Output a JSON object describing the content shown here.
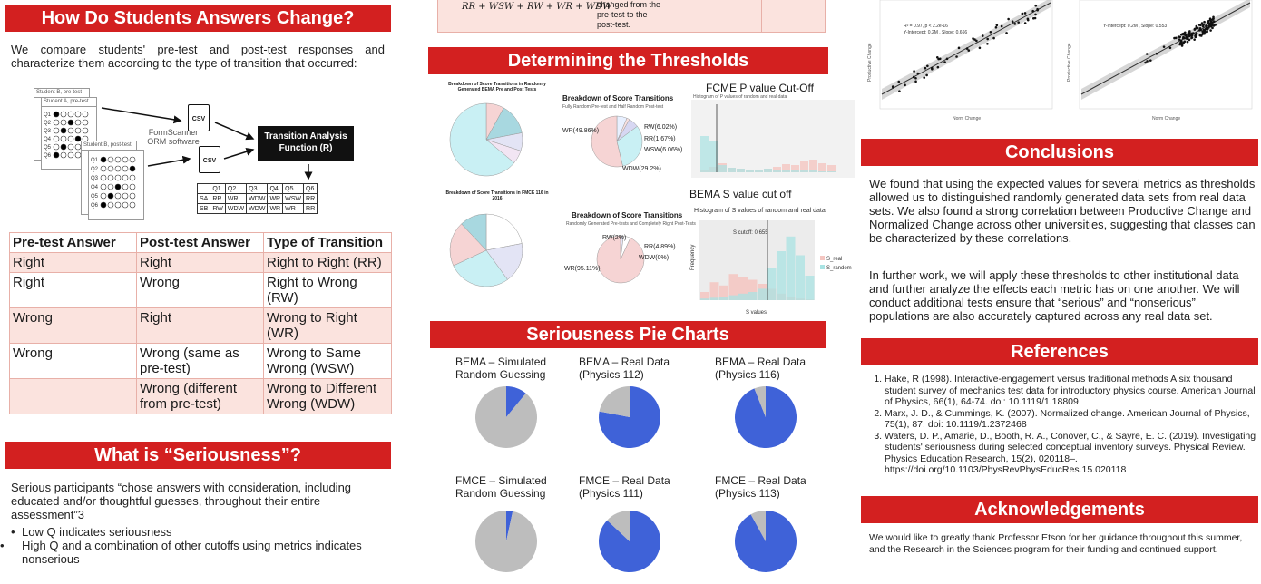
{
  "poster": {
    "students": {
      "title": "How Do Students Answers Change?",
      "intro": "We compare students' pre-test and post-test responses and characterize them according to the type of transition that occurred:",
      "figure": {
        "sheet_a": "Student A, pre-test",
        "sheet_b_pre": "Student B, pre-test",
        "sheet_b_post": "Student B, post-test",
        "software": "FormScanner ORM software",
        "csv": "CSV",
        "function_label": "Transition Analysis Function (R)",
        "questions": [
          "Q1",
          "Q2",
          "Q3",
          "Q4",
          "Q5",
          "Q6"
        ],
        "rows": [
          [
            "SA",
            "RR",
            "WR",
            "WDW",
            "WR",
            "WSW",
            "RR"
          ],
          [
            "SB",
            "RW",
            "WDW",
            "WDW",
            "WR",
            "WR",
            "RR"
          ]
        ]
      },
      "table": {
        "headers": [
          "Pre-test Answer",
          "Post-test Answer",
          "Type of Transition"
        ],
        "rows": [
          [
            "Right",
            "Right",
            "Right to Right (RR)"
          ],
          [
            "Right",
            "Wrong",
            "Right to Wrong (RW)"
          ],
          [
            "Wrong",
            "Right",
            "Wrong to Right (WR)"
          ],
          [
            "Wrong",
            "Wrong (same as pre-test)",
            "Wrong to Same Wrong (WSW)"
          ],
          [
            "",
            "Wrong (different from pre-test)",
            "Wrong to Different Wrong (WDW)"
          ]
        ]
      }
    },
    "seriousness": {
      "title": "What is “Seriousness”?",
      "text": "Serious participants “chose answers with consideration, including educated and/or thoughtful guesses, throughout their entire assessment”3",
      "bullets": [
        "Low Q indicates seriousness",
        "High Q and a combination of other cutoffs using metrics indicates nonserious"
      ]
    },
    "top_strip": {
      "formula": "RR + WSW + RW + WR + WDW",
      "note": "changed from the pre-test to the post-test."
    },
    "thresholds": {
      "title": "Determining the Thresholds",
      "pie1_title": "Breakdown of Score Transitions in Randomly Generated BEMA Pre and Post Tests",
      "pie2_title": "Breakdown of Score Transitions",
      "pie2_sub": "Fully Random Pre-test and Half Random Post-test",
      "pie2_labels": [
        "WR(49.86%)",
        "RW(6.02%)",
        "RR(1.67%)",
        "WSW(6.06%)",
        "WDW(29.2%)"
      ],
      "pie3_title": "Breakdown of Score Transitions in FMCE 116 in 2016",
      "pie4_title": "Breakdown of Score Transitions",
      "pie4_sub": "Randomly Generated Pre-tests and Completely Right Post-Tests",
      "pie4_labels": [
        "RW(2%)",
        "RR(4.89%)",
        "WDW(0%)",
        "WR(95.11%)"
      ],
      "fcme_title": "FCME P value Cut-Off",
      "fcme_sub": "Histogram of P values of random and real data",
      "bema_title": "BEMA S value cut off",
      "bema_sub": "Histogram of S values of random and real data",
      "bema_xlabel": "S values",
      "bema_ylabel": "Frequency",
      "bema_cut": "S cutoff: 0.655",
      "legend": [
        "S_real",
        "S_random"
      ]
    },
    "pies": {
      "title": "Seriousness Pie Charts",
      "charts": [
        {
          "label": "BEMA – Simulated Random Guessing",
          "serious_pct": 11
        },
        {
          "label": "BEMA – Real Data (Physics 112)",
          "serious_pct": 78
        },
        {
          "label": "BEMA – Real Data (Physics 116)",
          "serious_pct": 94
        },
        {
          "label": "FMCE – Simulated Random Guessing",
          "serious_pct": 3.4
        },
        {
          "label": "FMCE – Real Data (Physics 111)",
          "serious_pct": 87
        },
        {
          "label": "FMCE – Real Data (Physics 113)",
          "serious_pct": 92
        }
      ],
      "colors": {
        "serious": "#3f62d8",
        "nonserious": "#bdbdbd"
      }
    },
    "scatter": {
      "left_xlabel": "Norm Change",
      "right_xlabel": "Norm Change",
      "ylabel": "Productive Change",
      "left_stats": "R² = 0.97, p < 2.2e-16",
      "left_stats2": "Y-Intercept: 0.2M , Slope: 0.666",
      "right_stats": "Y-Intercept: 0.2M , Slope: 0.553"
    },
    "conclusions": {
      "title": "Conclusions",
      "p1": "We found that using the expected values for several metrics as thresholds allowed us to distinguished randomly generated data sets from real data sets. We also found a strong correlation between Productive Change and Normalized Change across other universities, suggesting that classes can be characterized by these correlations.",
      "p2": "In further work, we will apply these thresholds to other institutional data and further analyze the effects each metric has on one another. We will conduct additional tests ensure that “serious” and “nonserious” populations are also accurately captured across any real data set."
    },
    "references": {
      "title": "References",
      "items": [
        "Hake, R (1998). Interactive-engagement versus traditional methods A six thousand student survey of mechanics test data for introductory physics course. American Journal of Physics, 66(1), 64-74. doi: 10.1119/1.18809",
        "Marx, J. D., & Cummings, K. (2007). Normalized change. American Journal of Physics, 75(1), 87. doi: 10.1119/1.2372468",
        "Waters, D. P., Amarie, D., Booth, R. A., Conover, C., & Sayre, E. C. (2019). Investigating students' seriousness during selected conceptual inventory surveys. Physical Review. Physics Education Research, 15(2), 020118–. https://doi.org/10.1103/PhysRevPhysEducRes.15.020118"
      ]
    },
    "ack": {
      "title": "Acknowledgements",
      "text": "We would like to greatly thank Professor Etson for her guidance throughout this summer, and the Research in the Sciences program for their funding and continued support."
    }
  }
}
